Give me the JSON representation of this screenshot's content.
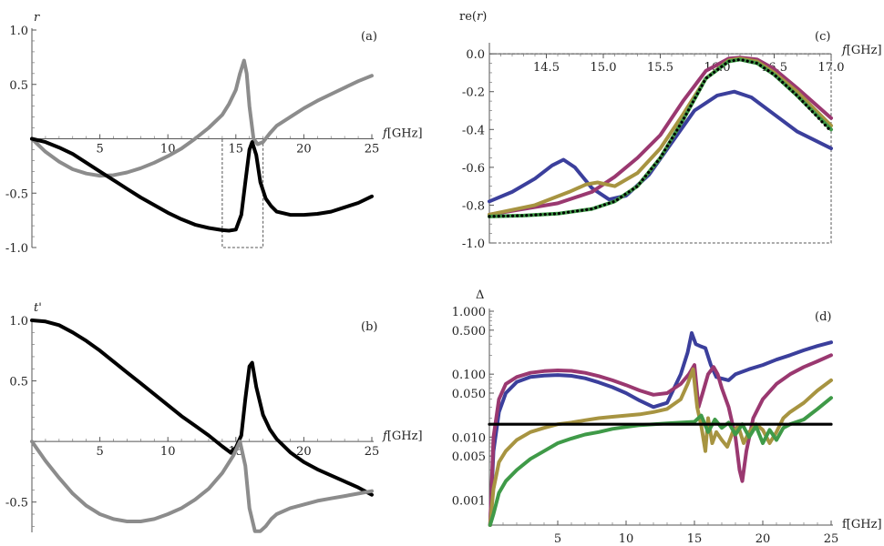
{
  "chart_data": [
    {
      "id": "a",
      "type": "line",
      "panel_label": "(a)",
      "ylabel": "r",
      "xlabel_italic": "f",
      "xlabel_unit": "[GHz]",
      "xlim": [
        0,
        25
      ],
      "ylim": [
        -1.0,
        1.0
      ],
      "xticks": [
        5,
        10,
        15,
        20,
        25
      ],
      "yticks": [
        1.0,
        0.5,
        -0.5,
        -1.0
      ],
      "ytick_labels": [
        "1.0",
        "0.5",
        "-0.5",
        "-1.0"
      ],
      "zoom_box": {
        "x": [
          14,
          17
        ],
        "y": [
          -1.0,
          0
        ]
      },
      "series": [
        {
          "name": "gray",
          "color": "#8c8c8c",
          "x": [
            0,
            1,
            2,
            3,
            4,
            5,
            6,
            7,
            8,
            9,
            10,
            11,
            12,
            13,
            14,
            14.5,
            15,
            15.3,
            15.6,
            15.8,
            16,
            16.3,
            16.6,
            17,
            17.5,
            18,
            19,
            20,
            21,
            22,
            23,
            24,
            25
          ],
          "y": [
            0,
            -0.12,
            -0.21,
            -0.28,
            -0.32,
            -0.34,
            -0.335,
            -0.31,
            -0.27,
            -0.22,
            -0.16,
            -0.09,
            0.0,
            0.1,
            0.22,
            0.32,
            0.45,
            0.6,
            0.72,
            0.6,
            0.3,
            0.0,
            -0.05,
            -0.03,
            0.05,
            0.12,
            0.2,
            0.28,
            0.35,
            0.41,
            0.47,
            0.53,
            0.58
          ]
        },
        {
          "name": "black",
          "color": "#000000",
          "x": [
            0,
            1,
            2,
            3,
            4,
            5,
            6,
            7,
            8,
            9,
            10,
            11,
            12,
            13,
            14,
            14.5,
            15,
            15.4,
            15.7,
            16,
            16.2,
            16.5,
            16.8,
            17.2,
            17.6,
            18,
            19,
            20,
            21,
            22,
            23,
            24,
            25
          ],
          "y": [
            0,
            -0.03,
            -0.08,
            -0.14,
            -0.22,
            -0.3,
            -0.38,
            -0.46,
            -0.54,
            -0.61,
            -0.68,
            -0.74,
            -0.79,
            -0.82,
            -0.84,
            -0.845,
            -0.835,
            -0.7,
            -0.4,
            -0.1,
            -0.03,
            -0.15,
            -0.4,
            -0.55,
            -0.62,
            -0.67,
            -0.7,
            -0.7,
            -0.69,
            -0.67,
            -0.63,
            -0.59,
            -0.53
          ]
        }
      ]
    },
    {
      "id": "b",
      "type": "line",
      "panel_label": "(b)",
      "ylabel": "t'",
      "xlabel_italic": "f",
      "xlabel_unit": "[GHz]",
      "xlim": [
        0,
        25
      ],
      "ylim": [
        -0.75,
        1.0
      ],
      "xticks": [
        5,
        10,
        15,
        20,
        25
      ],
      "yticks": [
        1.0,
        0.5,
        -0.5
      ],
      "ytick_labels": [
        "1.0",
        "0.5",
        "-0.5"
      ],
      "series": [
        {
          "name": "black",
          "color": "#000000",
          "x": [
            0,
            1,
            2,
            3,
            4,
            5,
            6,
            7,
            8,
            9,
            10,
            11,
            12,
            13,
            14,
            14.6,
            15,
            15.4,
            15.7,
            16,
            16.2,
            16.5,
            17,
            17.5,
            18,
            19,
            20,
            21,
            22,
            23,
            24,
            25
          ],
          "y": [
            1.0,
            0.99,
            0.96,
            0.9,
            0.83,
            0.75,
            0.66,
            0.57,
            0.48,
            0.39,
            0.3,
            0.21,
            0.13,
            0.05,
            -0.04,
            -0.09,
            -0.05,
            0.05,
            0.35,
            0.62,
            0.65,
            0.45,
            0.22,
            0.1,
            0.02,
            -0.09,
            -0.17,
            -0.23,
            -0.28,
            -0.33,
            -0.38,
            -0.44
          ]
        },
        {
          "name": "gray",
          "color": "#8c8c8c",
          "x": [
            0,
            1,
            2,
            3,
            4,
            5,
            6,
            7,
            8,
            9,
            10,
            11,
            12,
            13,
            14,
            14.8,
            15.3,
            15.7,
            16,
            16.4,
            16.8,
            17.2,
            17.6,
            18,
            19,
            20,
            21,
            22,
            23,
            24,
            25
          ],
          "y": [
            0,
            -0.16,
            -0.3,
            -0.43,
            -0.53,
            -0.6,
            -0.64,
            -0.66,
            -0.66,
            -0.64,
            -0.6,
            -0.55,
            -0.48,
            -0.39,
            -0.26,
            -0.12,
            0.0,
            -0.2,
            -0.55,
            -0.74,
            -0.74,
            -0.7,
            -0.64,
            -0.6,
            -0.55,
            -0.52,
            -0.49,
            -0.47,
            -0.45,
            -0.43,
            -0.41
          ]
        }
      ]
    },
    {
      "id": "c",
      "type": "line",
      "panel_label": "(c)",
      "ylabel": "re(r)",
      "xlabel_italic": "f",
      "xlabel_unit": "[GHz]",
      "xlim": [
        14,
        17
      ],
      "ylim": [
        -1.0,
        0.02
      ],
      "xticks": [
        14.5,
        15.0,
        15.5,
        16.0,
        16.5,
        17.0
      ],
      "xtick_labels": [
        "14.5",
        "15.0",
        "15.5",
        "16.0",
        "16.5",
        "17.0"
      ],
      "yticks": [
        0.0,
        -0.2,
        -0.4,
        -0.6,
        -0.8,
        -1.0
      ],
      "ytick_labels": [
        "0.0",
        "-0.2",
        "-0.4",
        "-0.6",
        "-0.8",
        "-1.0"
      ],
      "series": [
        {
          "name": "blue",
          "color": "#3b3f9c",
          "x": [
            14,
            14.2,
            14.4,
            14.55,
            14.65,
            14.75,
            14.9,
            15.05,
            15.2,
            15.4,
            15.6,
            15.8,
            16.0,
            16.15,
            16.3,
            16.5,
            16.7,
            17.0
          ],
          "y": [
            -0.78,
            -0.73,
            -0.66,
            -0.59,
            -0.56,
            -0.6,
            -0.71,
            -0.77,
            -0.75,
            -0.64,
            -0.47,
            -0.3,
            -0.22,
            -0.2,
            -0.23,
            -0.32,
            -0.41,
            -0.5
          ]
        },
        {
          "name": "magenta",
          "color": "#9a3870",
          "x": [
            14,
            14.3,
            14.6,
            14.9,
            15.1,
            15.3,
            15.5,
            15.7,
            15.9,
            16.1,
            16.2,
            16.35,
            16.5,
            16.7,
            17.0
          ],
          "y": [
            -0.85,
            -0.82,
            -0.79,
            -0.73,
            -0.65,
            -0.55,
            -0.43,
            -0.25,
            -0.09,
            -0.025,
            -0.02,
            -0.03,
            -0.08,
            -0.18,
            -0.34
          ]
        },
        {
          "name": "olive",
          "color": "#a79441",
          "x": [
            14,
            14.4,
            14.7,
            14.85,
            14.95,
            15.1,
            15.3,
            15.5,
            15.7,
            15.9,
            16.1,
            16.2,
            16.35,
            16.5,
            16.7,
            17.0
          ],
          "y": [
            -0.85,
            -0.8,
            -0.73,
            -0.69,
            -0.68,
            -0.7,
            -0.63,
            -0.5,
            -0.32,
            -0.13,
            -0.035,
            -0.025,
            -0.04,
            -0.1,
            -0.2,
            -0.38
          ]
        },
        {
          "name": "green",
          "color": "#3f9a48",
          "x": [
            14,
            14.3,
            14.6,
            14.9,
            15.1,
            15.3,
            15.5,
            15.7,
            15.9,
            16.1,
            16.2,
            16.35,
            16.5,
            16.7,
            17.0
          ],
          "y": [
            -0.86,
            -0.855,
            -0.845,
            -0.82,
            -0.78,
            -0.7,
            -0.55,
            -0.35,
            -0.13,
            -0.04,
            -0.03,
            -0.05,
            -0.11,
            -0.22,
            -0.4
          ]
        },
        {
          "name": "reference",
          "color": "#000000",
          "dotted": true,
          "x": [
            14,
            14.3,
            14.6,
            14.9,
            15.1,
            15.3,
            15.5,
            15.7,
            15.9,
            16.1,
            16.2,
            16.35,
            16.5,
            16.7,
            17.0
          ],
          "y": [
            -0.86,
            -0.855,
            -0.845,
            -0.82,
            -0.78,
            -0.7,
            -0.55,
            -0.35,
            -0.13,
            -0.04,
            -0.03,
            -0.05,
            -0.11,
            -0.22,
            -0.41
          ]
        }
      ]
    },
    {
      "id": "d",
      "type": "line",
      "panel_label": "(d)",
      "ylabel": "Δ",
      "xlabel": "f[GHz]",
      "xscale": "linear",
      "yscale": "log",
      "xlim": [
        0,
        25
      ],
      "ylim": [
        0.0004,
        1.0
      ],
      "xticks": [
        5,
        10,
        15,
        20,
        25
      ],
      "yticks": [
        1.0,
        0.5,
        0.1,
        0.05,
        0.01,
        0.005,
        0.001
      ],
      "ytick_labels": [
        "1.000",
        "0.500",
        "0.100",
        "0.050",
        "0.010",
        "0.005",
        "0.001"
      ],
      "series": [
        {
          "name": "blue",
          "color": "#3b3f9c",
          "x": [
            0.05,
            0.3,
            0.7,
            1.2,
            2,
            3,
            4,
            5,
            6,
            7,
            8,
            9,
            10,
            11,
            12,
            13,
            14,
            14.5,
            14.8,
            15.1,
            15.4,
            15.8,
            16.2,
            16.6,
            17,
            17.5,
            18,
            19,
            20,
            21,
            22,
            23,
            24,
            25
          ],
          "y": [
            0.0004,
            0.006,
            0.025,
            0.05,
            0.075,
            0.09,
            0.095,
            0.097,
            0.094,
            0.086,
            0.074,
            0.062,
            0.05,
            0.038,
            0.03,
            0.035,
            0.1,
            0.22,
            0.45,
            0.3,
            0.28,
            0.26,
            0.14,
            0.09,
            0.085,
            0.08,
            0.1,
            0.12,
            0.14,
            0.17,
            0.2,
            0.24,
            0.28,
            0.32
          ]
        },
        {
          "name": "magenta",
          "color": "#9a3870",
          "x": [
            0.05,
            0.3,
            0.7,
            1.2,
            2,
            3,
            4,
            5,
            6,
            7,
            8,
            9,
            10,
            11,
            12,
            13,
            14,
            14.6,
            15,
            15.3,
            15.6,
            16,
            16.4,
            16.7,
            17,
            17.5,
            18,
            18.3,
            18.5,
            18.8,
            19.3,
            20,
            21,
            22,
            23,
            24,
            25
          ],
          "y": [
            0.0004,
            0.01,
            0.04,
            0.07,
            0.09,
            0.105,
            0.112,
            0.115,
            0.113,
            0.105,
            0.093,
            0.08,
            0.067,
            0.055,
            0.047,
            0.05,
            0.07,
            0.1,
            0.14,
            0.03,
            0.05,
            0.1,
            0.13,
            0.1,
            0.06,
            0.03,
            0.01,
            0.003,
            0.002,
            0.006,
            0.02,
            0.04,
            0.07,
            0.1,
            0.13,
            0.16,
            0.2
          ]
        },
        {
          "name": "olive",
          "color": "#a79441",
          "x": [
            0.05,
            0.3,
            0.7,
            1.2,
            2,
            3,
            4,
            5,
            6,
            7,
            8,
            9,
            10,
            11,
            12,
            13,
            14,
            14.5,
            14.9,
            15.2,
            15.5,
            15.8,
            16,
            16.3,
            16.6,
            17,
            17.4,
            17.8,
            18.2,
            18.6,
            19,
            19.5,
            20,
            20.5,
            21,
            21.5,
            22,
            23,
            24,
            25
          ],
          "y": [
            0.0004,
            0.0015,
            0.004,
            0.006,
            0.009,
            0.012,
            0.014,
            0.016,
            0.017,
            0.0185,
            0.02,
            0.021,
            0.022,
            0.023,
            0.025,
            0.028,
            0.04,
            0.07,
            0.12,
            0.03,
            0.015,
            0.006,
            0.02,
            0.008,
            0.012,
            0.009,
            0.007,
            0.012,
            0.015,
            0.008,
            0.012,
            0.016,
            0.013,
            0.008,
            0.012,
            0.02,
            0.025,
            0.035,
            0.055,
            0.08
          ]
        },
        {
          "name": "green",
          "color": "#3f9a48",
          "x": [
            0.05,
            0.3,
            0.7,
            1.2,
            2,
            3,
            4,
            5,
            6,
            7,
            8,
            9,
            10,
            11,
            12,
            13,
            14,
            15,
            15.5,
            16,
            16.5,
            17,
            17.5,
            18,
            18.5,
            19,
            19.5,
            20,
            20.5,
            21,
            21.5,
            22,
            23,
            24,
            25
          ],
          "y": [
            0.0004,
            0.0006,
            0.0013,
            0.002,
            0.003,
            0.0045,
            0.006,
            0.008,
            0.0095,
            0.011,
            0.012,
            0.0135,
            0.0145,
            0.0155,
            0.016,
            0.0165,
            0.017,
            0.0175,
            0.022,
            0.012,
            0.019,
            0.014,
            0.017,
            0.011,
            0.016,
            0.01,
            0.015,
            0.008,
            0.013,
            0.009,
            0.014,
            0.016,
            0.019,
            0.028,
            0.042
          ]
        },
        {
          "name": "threshold",
          "color": "#000000",
          "x": [
            0,
            25
          ],
          "y": [
            0.016,
            0.016
          ]
        }
      ]
    }
  ]
}
